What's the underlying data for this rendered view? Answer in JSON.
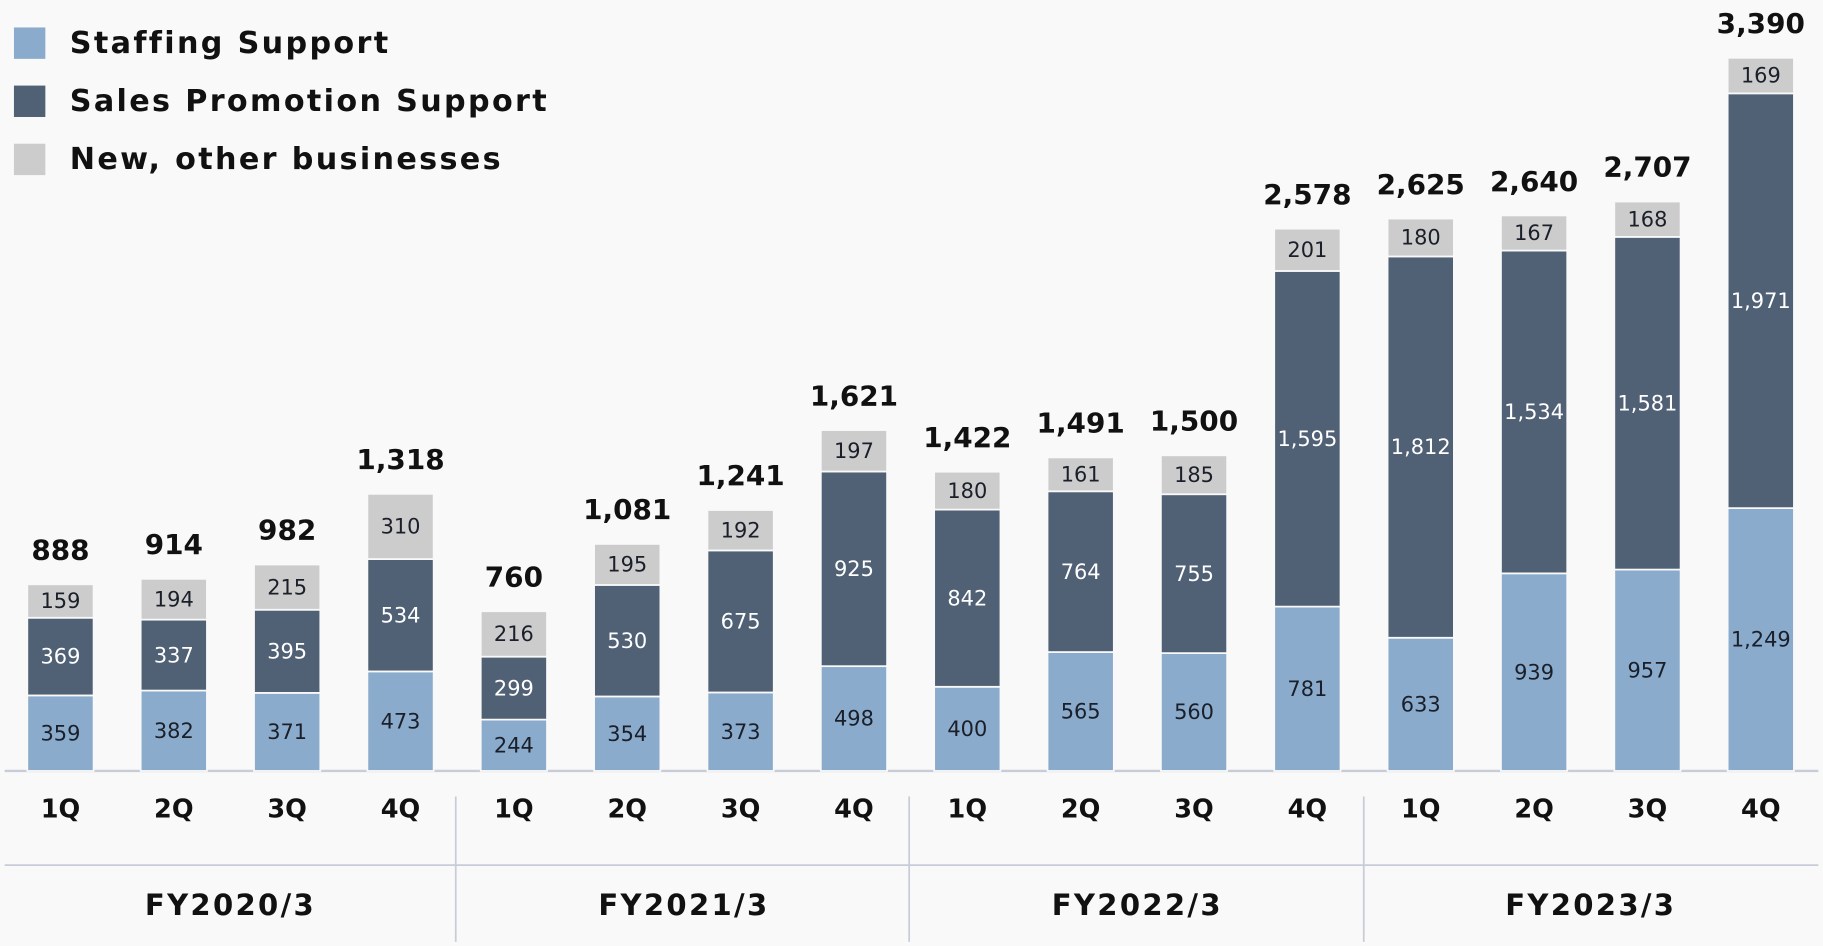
{
  "chart_data": {
    "type": "stacked_bar",
    "categories": [
      "1Q",
      "2Q",
      "3Q",
      "4Q",
      "1Q",
      "2Q",
      "3Q",
      "4Q",
      "1Q",
      "2Q",
      "3Q",
      "4Q",
      "1Q",
      "2Q",
      "3Q",
      "4Q"
    ],
    "groups": [
      "FY2020/3",
      "FY2021/3",
      "FY2022/3",
      "FY2023/3"
    ],
    "series": [
      {
        "name": "Staffing Support",
        "color": "#8aabcb",
        "values": [
          359,
          382,
          371,
          473,
          244,
          354,
          373,
          498,
          400,
          565,
          560,
          781,
          633,
          939,
          957,
          1249
        ],
        "value_labels": [
          "359",
          "382",
          "371",
          "473",
          "244",
          "354",
          "373",
          "498",
          "400",
          "565",
          "560",
          "781",
          "633",
          "939",
          "957",
          "1,249"
        ]
      },
      {
        "name": "Sales Promotion Support",
        "color": "#506075",
        "values": [
          369,
          337,
          395,
          534,
          299,
          530,
          675,
          925,
          842,
          764,
          755,
          1595,
          1812,
          1534,
          1581,
          1971
        ],
        "value_labels": [
          "369",
          "337",
          "395",
          "534",
          "299",
          "530",
          "675",
          "925",
          "842",
          "764",
          "755",
          "1,595",
          "1,812",
          "1,534",
          "1,581",
          "1,971"
        ]
      },
      {
        "name": "New, other businesses",
        "color": "#cccccc",
        "values": [
          159,
          194,
          215,
          310,
          216,
          195,
          192,
          197,
          180,
          161,
          185,
          201,
          180,
          167,
          168,
          169
        ]
      }
    ],
    "totals": [
      888,
      914,
      982,
      1318,
      760,
      1081,
      1241,
      1621,
      1422,
      1491,
      1500,
      2578,
      2625,
      2640,
      2707,
      3390
    ],
    "total_labels": [
      "888",
      "914",
      "982",
      "1,318",
      "760",
      "1,081",
      "1,241",
      "1,621",
      "1,422",
      "1,491",
      "1,500",
      "2,578",
      "2,625",
      "2,640",
      "2,707",
      "3,390"
    ],
    "ylim": [
      0,
      3400
    ]
  }
}
